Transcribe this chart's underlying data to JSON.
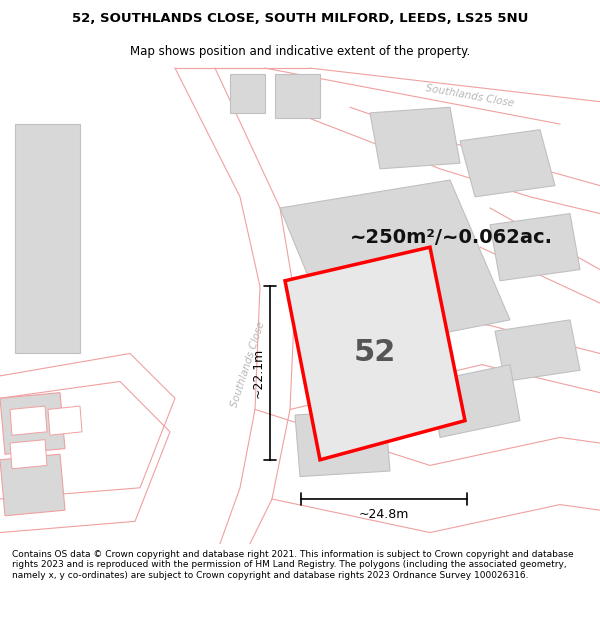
{
  "title_line1": "52, SOUTHLANDS CLOSE, SOUTH MILFORD, LEEDS, LS25 5NU",
  "title_line2": "Map shows position and indicative extent of the property.",
  "area_text": "~250m²/~0.062ac.",
  "number_label": "52",
  "dim_width": "~24.8m",
  "dim_height": "~22.1m",
  "road_label_tr": "Southlands Close",
  "road_label_left": "Southlands Close",
  "footer_text": "Contains OS data © Crown copyright and database right 2021. This information is subject to Crown copyright and database rights 2023 and is reproduced with the permission of HM Land Registry. The polygons (including the associated geometry, namely x, y co-ordinates) are subject to Crown copyright and database rights 2023 Ordnance Survey 100026316.",
  "bg_color": "#ffffff",
  "map_bg": "#ffffff",
  "plot_fill": "#e8e8e8",
  "plot_edge": "#ff0000",
  "building_fill": "#d8d8d8",
  "building_edge": "#c0c0c0",
  "road_edge": "#f0a0a0",
  "road_fill": "#ffffff",
  "road_label_color": "#b8b8b8",
  "dim_line_color": "#000000",
  "area_text_color": "#111111",
  "number_color": "#555555",
  "title_color": "#000000",
  "footer_color": "#000000",
  "title_fontsize": 9.5,
  "subtitle_fontsize": 8.5,
  "area_fontsize": 14,
  "number_fontsize": 22,
  "dim_fontsize": 9,
  "road_label_fontsize": 7.5,
  "footer_fontsize": 6.5
}
